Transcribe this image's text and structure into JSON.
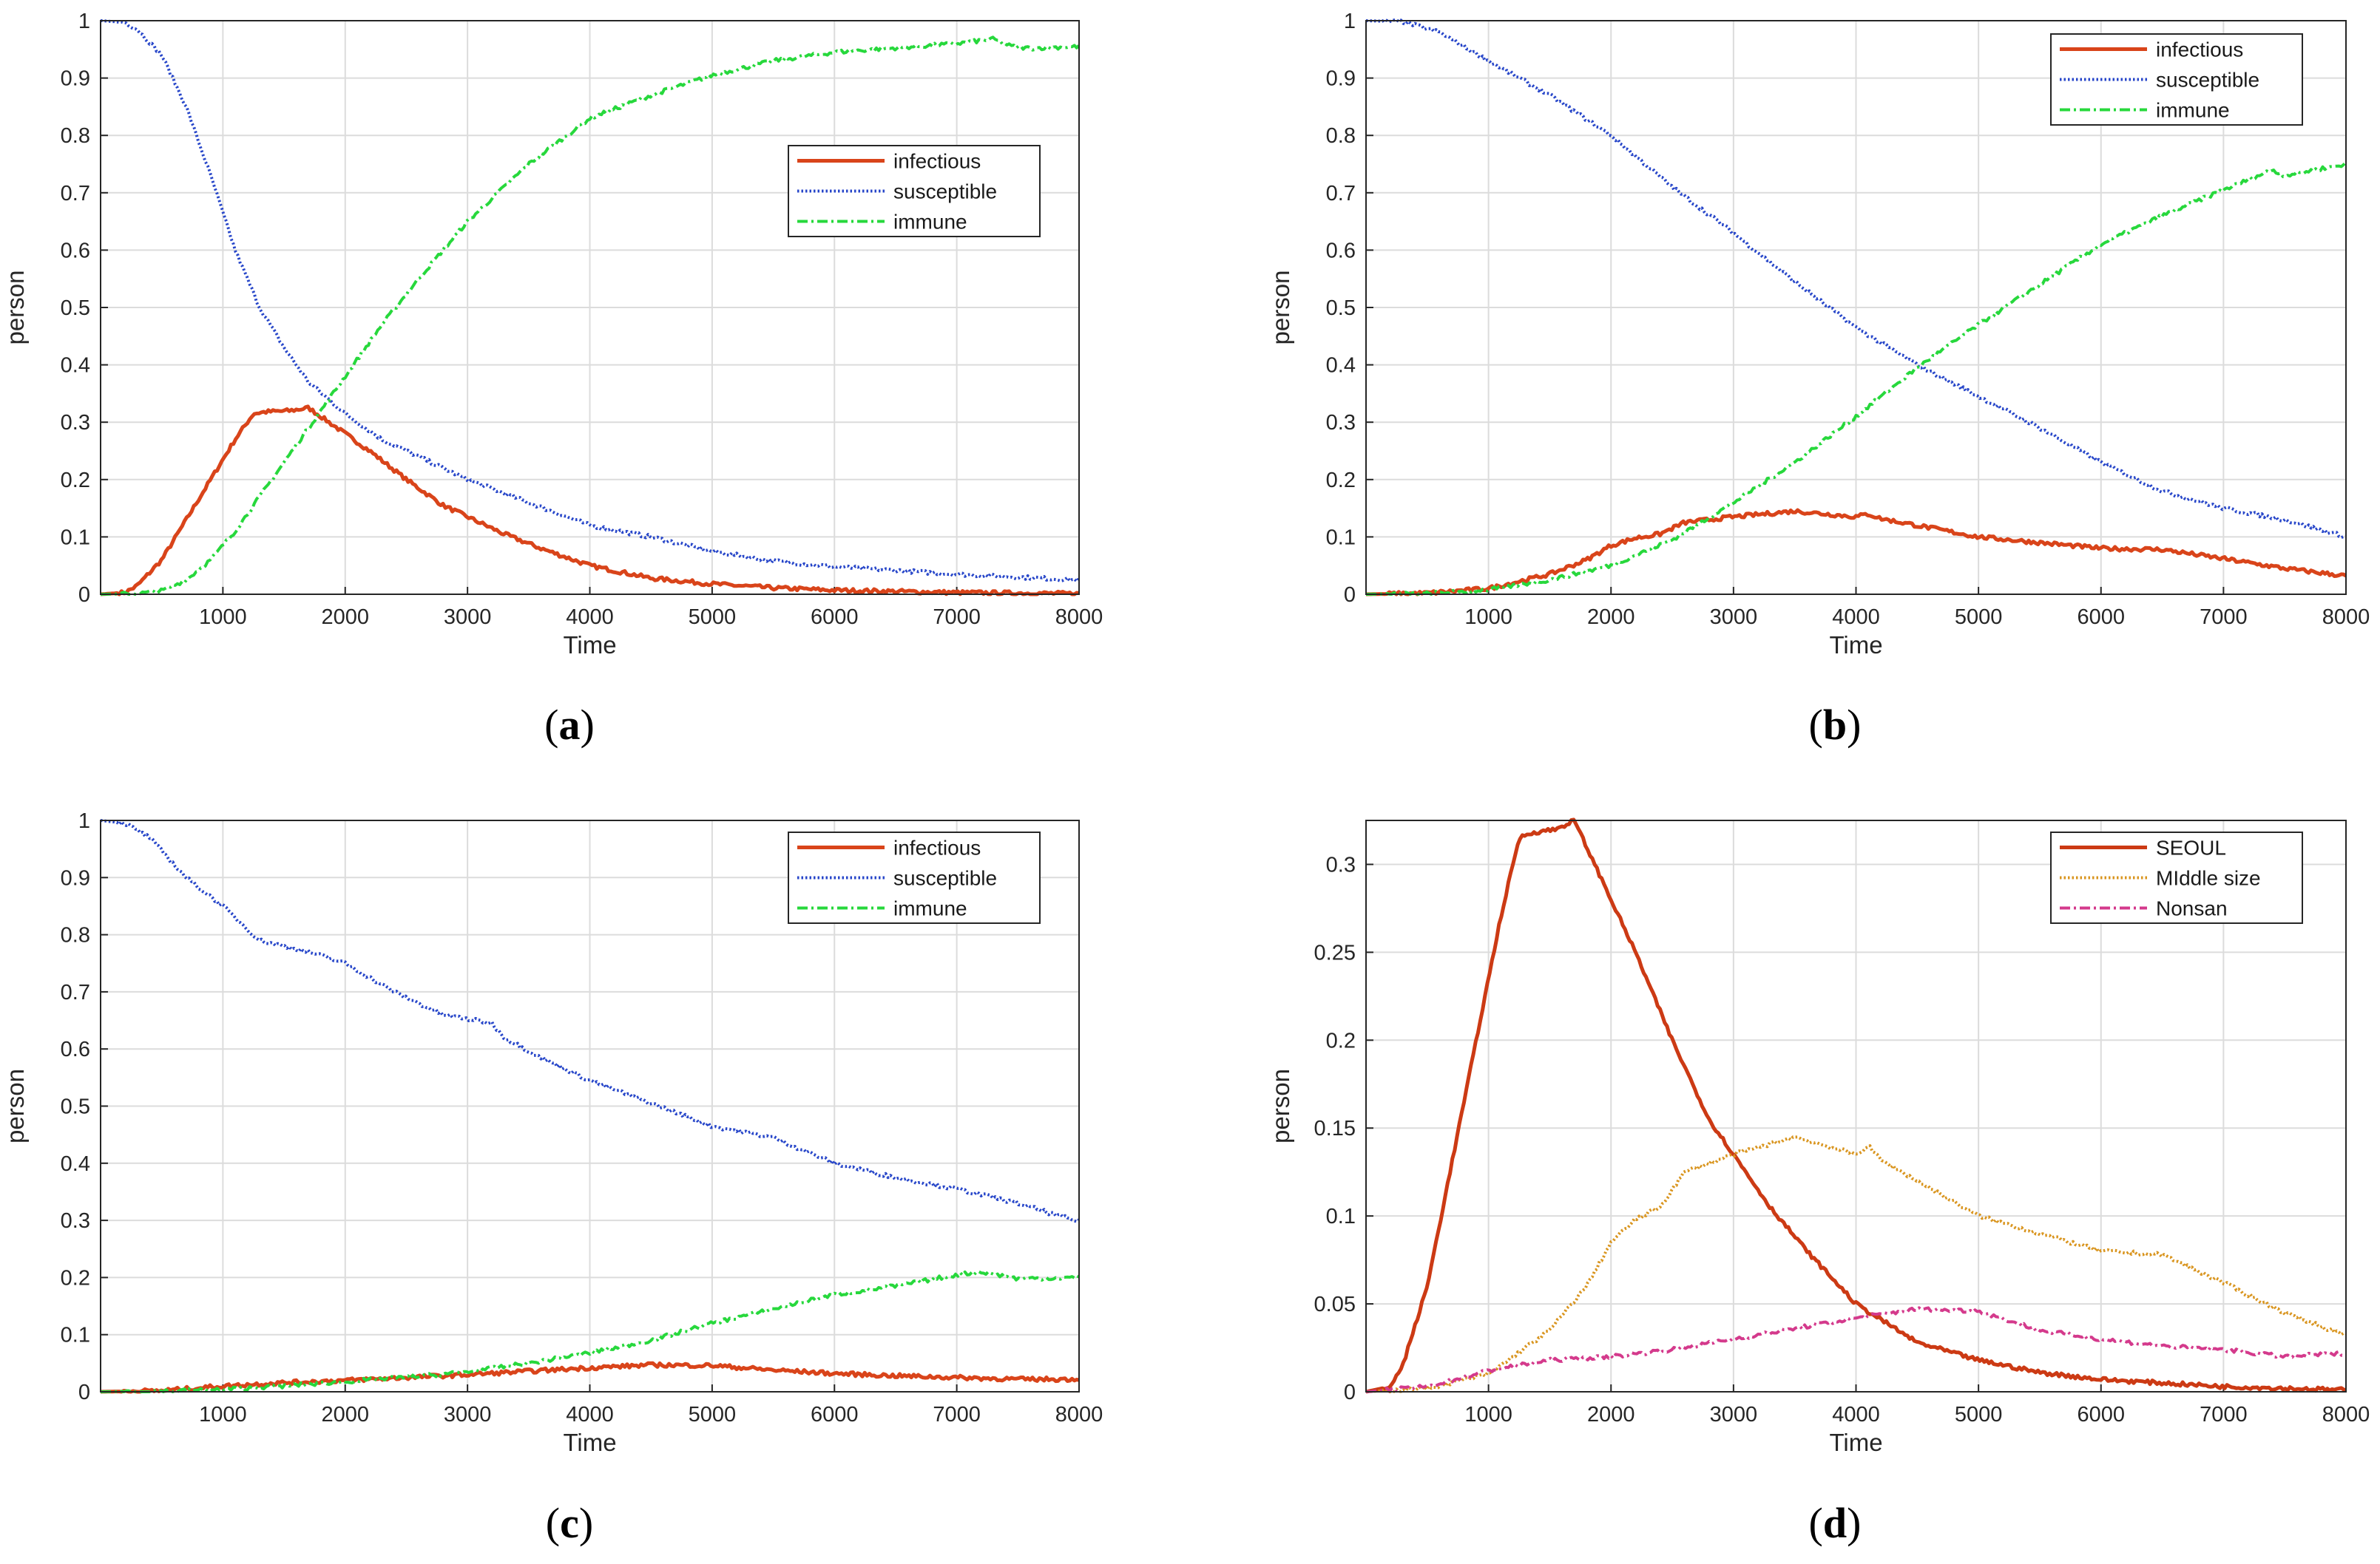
{
  "chart_data": [
    {
      "type": "line",
      "caption": "a",
      "xlabel": "Time",
      "ylabel": "person",
      "xlim": [
        0,
        8000
      ],
      "ylim": [
        0,
        1
      ],
      "xticks": [
        "1000",
        "2000",
        "3000",
        "4000",
        "5000",
        "6000",
        "7000",
        "8000"
      ],
      "yticks": [
        "0",
        "0.1",
        "0.2",
        "0.3",
        "0.4",
        "0.5",
        "0.6",
        "0.7",
        "0.8",
        "0.9",
        "1"
      ],
      "grid": true,
      "legend_position": "upper-right-inset",
      "series": [
        {
          "name": "infectious",
          "color": "#d9441a",
          "style": "solid",
          "x": [
            0,
            200,
            300,
            500,
            700,
            900,
            1100,
            1250,
            1350,
            1550,
            1700,
            1800,
            2000,
            2200,
            2500,
            2800,
            3000,
            3300,
            3600,
            4000,
            4500,
            5000,
            5500,
            6000,
            7000,
            8000
          ],
          "y": [
            0,
            0.003,
            0.015,
            0.06,
            0.13,
            0.2,
            0.27,
            0.315,
            0.318,
            0.32,
            0.325,
            0.31,
            0.28,
            0.25,
            0.2,
            0.155,
            0.135,
            0.105,
            0.08,
            0.05,
            0.028,
            0.018,
            0.011,
            0.007,
            0.003,
            0.001
          ]
        },
        {
          "name": "susceptible",
          "color": "#2746c9",
          "style": "dotted",
          "x": [
            0,
            200,
            300,
            500,
            700,
            900,
            1100,
            1300,
            1500,
            1700,
            2000,
            2300,
            2600,
            3000,
            3500,
            4000,
            4500,
            5000,
            5500,
            6000,
            7000,
            8000
          ],
          "y": [
            1,
            0.997,
            0.985,
            0.94,
            0.85,
            0.73,
            0.6,
            0.5,
            0.43,
            0.37,
            0.315,
            0.27,
            0.24,
            0.2,
            0.16,
            0.12,
            0.1,
            0.075,
            0.058,
            0.048,
            0.035,
            0.025
          ]
        },
        {
          "name": "immune",
          "color": "#27d83c",
          "style": "dashdot",
          "x": [
            0,
            300,
            500,
            700,
            900,
            1100,
            1300,
            1500,
            1700,
            2000,
            2300,
            2600,
            3000,
            3500,
            4000,
            4500,
            5000,
            5500,
            6000,
            7000,
            7300,
            7450,
            7600,
            8000
          ],
          "y": [
            0,
            0.001,
            0.006,
            0.025,
            0.06,
            0.11,
            0.17,
            0.23,
            0.29,
            0.38,
            0.47,
            0.55,
            0.65,
            0.75,
            0.83,
            0.87,
            0.905,
            0.93,
            0.945,
            0.96,
            0.968,
            0.955,
            0.952,
            0.955
          ]
        }
      ]
    },
    {
      "type": "line",
      "caption": "b",
      "xlabel": "Time",
      "ylabel": "person",
      "xlim": [
        0,
        8000
      ],
      "ylim": [
        0,
        1
      ],
      "xticks": [
        "1000",
        "2000",
        "3000",
        "4000",
        "5000",
        "6000",
        "7000",
        "8000"
      ],
      "yticks": [
        "0",
        "0.1",
        "0.2",
        "0.3",
        "0.4",
        "0.5",
        "0.6",
        "0.7",
        "0.8",
        "0.9",
        "1"
      ],
      "grid": true,
      "legend_position": "top-right",
      "series": [
        {
          "name": "infectious",
          "color": "#d9441a",
          "style": "solid",
          "x": [
            0,
            500,
            1000,
            1500,
            1800,
            2000,
            2200,
            2400,
            2600,
            3000,
            3500,
            4000,
            4100,
            4200,
            4500,
            5000,
            5500,
            6000,
            6500,
            7000,
            7500,
            8000
          ],
          "y": [
            0,
            0.002,
            0.01,
            0.035,
            0.06,
            0.085,
            0.098,
            0.105,
            0.125,
            0.135,
            0.145,
            0.135,
            0.14,
            0.132,
            0.12,
            0.1,
            0.09,
            0.08,
            0.078,
            0.062,
            0.045,
            0.032
          ]
        },
        {
          "name": "susceptible",
          "color": "#2746c9",
          "style": "dotted",
          "x": [
            0,
            300,
            600,
            1000,
            1500,
            2000,
            2500,
            3000,
            3500,
            4000,
            4500,
            5000,
            5500,
            6000,
            6500,
            7000,
            7500,
            8000
          ],
          "y": [
            1,
            0.998,
            0.98,
            0.93,
            0.87,
            0.8,
            0.71,
            0.63,
            0.545,
            0.465,
            0.4,
            0.345,
            0.29,
            0.23,
            0.18,
            0.15,
            0.13,
            0.1
          ]
        },
        {
          "name": "immune",
          "color": "#27d83c",
          "style": "dashdot",
          "x": [
            0,
            500,
            1000,
            1500,
            2000,
            2500,
            3000,
            3500,
            4000,
            4500,
            5000,
            5500,
            6000,
            6500,
            7000,
            7400,
            7450,
            7500,
            8000
          ],
          "y": [
            0,
            0.001,
            0.008,
            0.025,
            0.05,
            0.095,
            0.16,
            0.23,
            0.31,
            0.395,
            0.47,
            0.54,
            0.61,
            0.66,
            0.705,
            0.74,
            0.735,
            0.73,
            0.75
          ]
        }
      ]
    },
    {
      "type": "line",
      "caption": "c",
      "xlabel": "Time",
      "ylabel": "person",
      "xlim": [
        0,
        8000
      ],
      "ylim": [
        0,
        1
      ],
      "xticks": [
        "1000",
        "2000",
        "3000",
        "4000",
        "5000",
        "6000",
        "7000",
        "8000"
      ],
      "yticks": [
        "0",
        "0.1",
        "0.2",
        "0.3",
        "0.4",
        "0.5",
        "0.6",
        "0.7",
        "0.8",
        "0.9",
        "1"
      ],
      "grid": true,
      "legend_position": "top-right",
      "series": [
        {
          "name": "infectious",
          "color": "#d9441a",
          "style": "solid",
          "x": [
            0,
            500,
            1000,
            1500,
            2000,
            2500,
            3000,
            3500,
            4000,
            4500,
            5000,
            5500,
            6000,
            6500,
            7000,
            7500,
            8000
          ],
          "y": [
            0,
            0.002,
            0.01,
            0.016,
            0.02,
            0.025,
            0.03,
            0.036,
            0.042,
            0.047,
            0.046,
            0.038,
            0.032,
            0.028,
            0.025,
            0.022,
            0.022
          ]
        },
        {
          "name": "susceptible",
          "color": "#2746c9",
          "style": "dotted",
          "x": [
            0,
            200,
            400,
            700,
            1000,
            1300,
            1700,
            2000,
            2400,
            2800,
            3200,
            3300,
            3600,
            4000,
            4500,
            5000,
            5500,
            6000,
            6500,
            7000,
            7500,
            7800,
            8000
          ],
          "y": [
            1,
            0.995,
            0.97,
            0.9,
            0.85,
            0.79,
            0.77,
            0.75,
            0.7,
            0.66,
            0.645,
            0.62,
            0.585,
            0.545,
            0.505,
            0.465,
            0.445,
            0.4,
            0.375,
            0.355,
            0.33,
            0.31,
            0.298
          ]
        },
        {
          "name": "immune",
          "color": "#27d83c",
          "style": "dashdot",
          "x": [
            0,
            500,
            1000,
            1500,
            2000,
            2500,
            3000,
            3500,
            4000,
            4500,
            5000,
            5500,
            6000,
            6500,
            7000,
            7200,
            7500,
            8000
          ],
          "y": [
            0,
            0.001,
            0.004,
            0.01,
            0.018,
            0.025,
            0.035,
            0.05,
            0.068,
            0.09,
            0.12,
            0.145,
            0.17,
            0.185,
            0.205,
            0.21,
            0.198,
            0.2
          ]
        }
      ]
    },
    {
      "type": "line",
      "caption": "d",
      "xlabel": "Time",
      "ylabel": "person",
      "xlim": [
        0,
        8000
      ],
      "ylim": [
        0,
        0.325
      ],
      "xticks": [
        "1000",
        "2000",
        "3000",
        "4000",
        "5000",
        "6000",
        "7000",
        "8000"
      ],
      "yticks": [
        "0",
        "0.05",
        "0.1",
        "0.15",
        "0.2",
        "0.25",
        "0.3"
      ],
      "grid": true,
      "legend_position": "top-right",
      "series": [
        {
          "name": "SEOUL",
          "color": "#cc3a14",
          "style": "solid",
          "x": [
            0,
            200,
            300,
            500,
            700,
            900,
            1100,
            1250,
            1350,
            1550,
            1700,
            1800,
            2000,
            2200,
            2500,
            2800,
            3000,
            3300,
            3600,
            4000,
            4500,
            5000,
            5500,
            6000,
            7000,
            8000
          ],
          "y": [
            0,
            0.003,
            0.015,
            0.06,
            0.13,
            0.2,
            0.27,
            0.315,
            0.318,
            0.32,
            0.325,
            0.31,
            0.28,
            0.25,
            0.2,
            0.155,
            0.135,
            0.105,
            0.08,
            0.05,
            0.028,
            0.018,
            0.011,
            0.007,
            0.003,
            0.001
          ]
        },
        {
          "name": "MIddle size",
          "color": "#d9951f",
          "style": "dotted",
          "x": [
            0,
            500,
            1000,
            1500,
            1800,
            2000,
            2200,
            2400,
            2600,
            3000,
            3500,
            4000,
            4100,
            4200,
            4500,
            5000,
            5500,
            6000,
            6500,
            7000,
            7500,
            8000
          ],
          "y": [
            0,
            0.002,
            0.01,
            0.035,
            0.06,
            0.085,
            0.098,
            0.105,
            0.125,
            0.135,
            0.145,
            0.135,
            0.14,
            0.132,
            0.12,
            0.1,
            0.09,
            0.08,
            0.078,
            0.062,
            0.045,
            0.032
          ]
        },
        {
          "name": "Nonsan",
          "color": "#d43a8c",
          "style": "dashdot",
          "x": [
            0,
            500,
            1000,
            1500,
            2000,
            2500,
            3000,
            3500,
            4000,
            4500,
            5000,
            5500,
            6000,
            6500,
            7000,
            7500,
            8000
          ],
          "y": [
            0,
            0.003,
            0.012,
            0.018,
            0.02,
            0.024,
            0.03,
            0.036,
            0.042,
            0.047,
            0.046,
            0.035,
            0.03,
            0.026,
            0.024,
            0.02,
            0.022
          ]
        }
      ]
    }
  ]
}
